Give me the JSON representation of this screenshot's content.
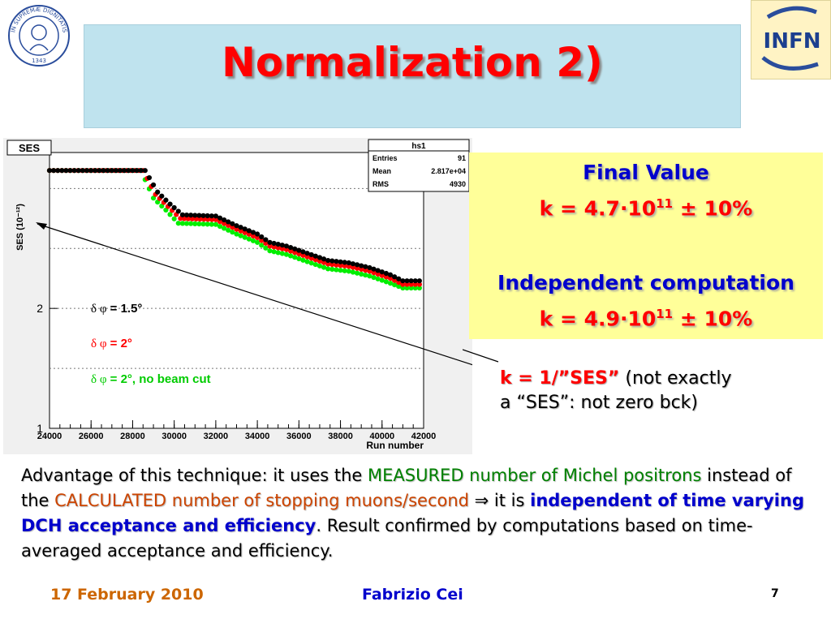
{
  "slide": {
    "title": "Normalization 2)",
    "seal_text": "IN SUPREMÆ DIGNITATIS",
    "seal_year": "1343",
    "logo_text": "INFN"
  },
  "histogram": {
    "frame_label": "SES",
    "stats_title": "hs1",
    "stats": [
      {
        "label": "Entries",
        "value": "91"
      },
      {
        "label": "Mean",
        "value": "2.817e+04"
      },
      {
        "label": "RMS",
        "value": "4930"
      }
    ],
    "legend_prefix": "δ φ",
    "legend": [
      {
        "text": " = 1.5°",
        "color": "#000000"
      },
      {
        "text": " = 2°",
        "color": "#ff0000"
      },
      {
        "text": " = 2°, no beam cut",
        "color": "#00cc00"
      }
    ],
    "ylabel": "SES (10⁻¹²)",
    "xlabel": "Run number",
    "y_tick_labels": [
      "2",
      "1"
    ],
    "x_tick_labels": [
      "24000",
      "26000",
      "28000",
      "30000",
      "32000",
      "34000",
      "36000",
      "38000",
      "40000",
      "42000"
    ]
  },
  "chart_data": {
    "type": "scatter",
    "title": "SES",
    "xlabel": "Run number",
    "ylabel": "SES (10⁻¹²)",
    "xlim": [
      24000,
      42000
    ],
    "ylim": [
      1,
      3.3
    ],
    "series": [
      {
        "name": "δ φ = 1.5°",
        "color": "#000000",
        "x": [
          24000,
          28600,
          29200,
          29800,
          30400,
          32000,
          33000,
          34000,
          34600,
          35400,
          36400,
          37400,
          38400,
          39400,
          40400,
          41000,
          42000
        ],
        "y": [
          3.15,
          3.15,
          2.97,
          2.87,
          2.78,
          2.77,
          2.69,
          2.62,
          2.55,
          2.52,
          2.46,
          2.4,
          2.38,
          2.34,
          2.28,
          2.23,
          2.23
        ]
      },
      {
        "name": "δ φ = 2°",
        "color": "#ff0000",
        "x": [
          24000,
          28500,
          29100,
          29700,
          30300,
          32000,
          33000,
          34000,
          34600,
          35400,
          36400,
          37400,
          38400,
          39400,
          40400,
          41000,
          42000
        ],
        "y": [
          3.15,
          3.15,
          2.95,
          2.85,
          2.75,
          2.74,
          2.66,
          2.59,
          2.52,
          2.49,
          2.43,
          2.37,
          2.35,
          2.31,
          2.25,
          2.2,
          2.2
        ]
      },
      {
        "name": "δ φ = 2°, no beam cut",
        "color": "#00ee00",
        "x": [
          24000,
          28400,
          29000,
          29600,
          30200,
          32000,
          33000,
          34000,
          34600,
          35400,
          36400,
          37400,
          38400,
          39400,
          40400,
          41000,
          42000
        ],
        "y": [
          3.15,
          3.15,
          2.92,
          2.82,
          2.71,
          2.7,
          2.62,
          2.55,
          2.48,
          2.45,
          2.39,
          2.33,
          2.31,
          2.27,
          2.21,
          2.17,
          2.17
        ]
      }
    ]
  },
  "final_box": {
    "title": "Final Value",
    "k_prefix": "k = 4.7·10",
    "k_exp": "11",
    "k_suffix": " ± 10%",
    "indep_title": "Independent computation",
    "k2_prefix": "k = 4.9·10",
    "k2_exp": "11",
    "k2_suffix": " ± 10%"
  },
  "note": {
    "formula": "k = 1/”SES”",
    "text1": " (not exactly",
    "text2": "a “SES”: not zero bck)"
  },
  "paragraph": {
    "p1": "Advantage of this technique: it uses the ",
    "p2": "MEASURED number of Michel positrons",
    "p3": " instead of the ",
    "p4": "CALCULATED number of stopping muons/second",
    "p5": " ⇒ it is ",
    "p6": "independent of time varying DCH acceptance and efficiency",
    "p7": ". Result confirmed by computations based on time-averaged acceptance and efficiency."
  },
  "footer": {
    "date": "17 February 2010",
    "author": "Fabrizio Cei",
    "page": "7"
  },
  "colors": {
    "title": "#ff0000",
    "title_bg": "#bfe3ee",
    "box_bg": "#ffff99",
    "blue": "#0000cc",
    "footer_date": "#cc6600",
    "footer_author": "#0000cc"
  }
}
